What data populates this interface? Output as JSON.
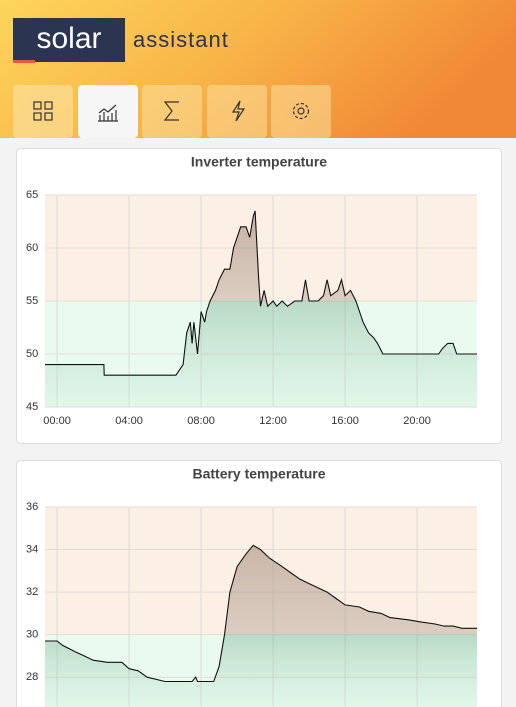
{
  "header": {
    "logo": "solar",
    "brand": "assistant"
  },
  "chart_data": [
    {
      "type": "line",
      "title": "Inverter temperature",
      "color": "#111111",
      "threshold": 55,
      "xlim": [
        -0.67,
        23.33
      ],
      "xticks": [
        {
          "value": 0,
          "label": "00:00"
        },
        {
          "value": 4,
          "label": "04:00"
        },
        {
          "value": 8,
          "label": "08:00"
        },
        {
          "value": 12,
          "label": "12:00"
        },
        {
          "value": 16,
          "label": "16:00"
        },
        {
          "value": 20,
          "label": "20:00"
        }
      ],
      "ylim": [
        45,
        65
      ],
      "yticks": [
        45,
        50,
        55,
        60,
        65
      ],
      "grid": true,
      "x": [
        -0.67,
        2.6,
        2.62,
        6.6,
        6.8,
        7.0,
        7.2,
        7.4,
        7.5,
        7.6,
        7.8,
        8.0,
        8.2,
        8.3,
        8.5,
        8.8,
        9.0,
        9.3,
        9.6,
        9.8,
        10.0,
        10.2,
        10.5,
        10.7,
        10.9,
        11.0,
        11.2,
        11.3,
        11.5,
        11.7,
        12.0,
        12.2,
        12.5,
        12.8,
        13.2,
        13.6,
        13.8,
        14.0,
        14.5,
        14.8,
        15.0,
        15.2,
        15.6,
        15.8,
        16.0,
        16.3,
        16.6,
        17.0,
        17.3,
        17.6,
        17.8,
        18.1,
        19.2,
        20.2,
        21.2,
        21.4,
        21.7,
        22.0,
        22.2,
        23.33
      ],
      "values": [
        49,
        49,
        48,
        48,
        48.5,
        49,
        52,
        53,
        51,
        53,
        50,
        54,
        53,
        54,
        55,
        56,
        57,
        58,
        58,
        60,
        61,
        62,
        62,
        61,
        63,
        63.5,
        57,
        54.5,
        56,
        54.5,
        55,
        54.5,
        55,
        54.5,
        55,
        55,
        57,
        55,
        55,
        55.5,
        57,
        55.5,
        56,
        57,
        55.5,
        56,
        55,
        53,
        52,
        51.5,
        51,
        50,
        50,
        50,
        50,
        50.5,
        51,
        51,
        50,
        50
      ]
    },
    {
      "type": "line",
      "title": "Battery temperature",
      "color": "#111111",
      "threshold": 30,
      "xlim": [
        -0.67,
        23.33
      ],
      "xticks": [
        0,
        4,
        8,
        12,
        16,
        20
      ],
      "ylim": [
        26.6,
        36
      ],
      "yticks": [
        28,
        30,
        32,
        34,
        36
      ],
      "grid": true,
      "x": [
        -0.67,
        0.0,
        0.3,
        1.0,
        1.5,
        2.0,
        2.8,
        3.6,
        4.0,
        4.5,
        5.0,
        6.0,
        7.5,
        7.7,
        7.8,
        8.7,
        9.0,
        9.3,
        9.6,
        10.0,
        10.5,
        10.9,
        11.3,
        11.8,
        12.5,
        13.0,
        13.5,
        14.0,
        14.5,
        15.0,
        15.5,
        16.0,
        16.8,
        17.3,
        18.0,
        18.5,
        19.5,
        20.2,
        21.0,
        21.5,
        22.0,
        22.5,
        23.33
      ],
      "values": [
        29.7,
        29.7,
        29.5,
        29.2,
        29,
        28.8,
        28.7,
        28.7,
        28.4,
        28.3,
        28,
        27.8,
        27.8,
        28,
        27.8,
        27.8,
        28.5,
        30,
        32,
        33.2,
        33.8,
        34.2,
        34,
        33.6,
        33.2,
        32.9,
        32.6,
        32.4,
        32.2,
        32,
        31.7,
        31.4,
        31.3,
        31.1,
        31,
        30.8,
        30.7,
        30.6,
        30.5,
        30.4,
        30.4,
        30.3,
        30.3
      ]
    }
  ]
}
